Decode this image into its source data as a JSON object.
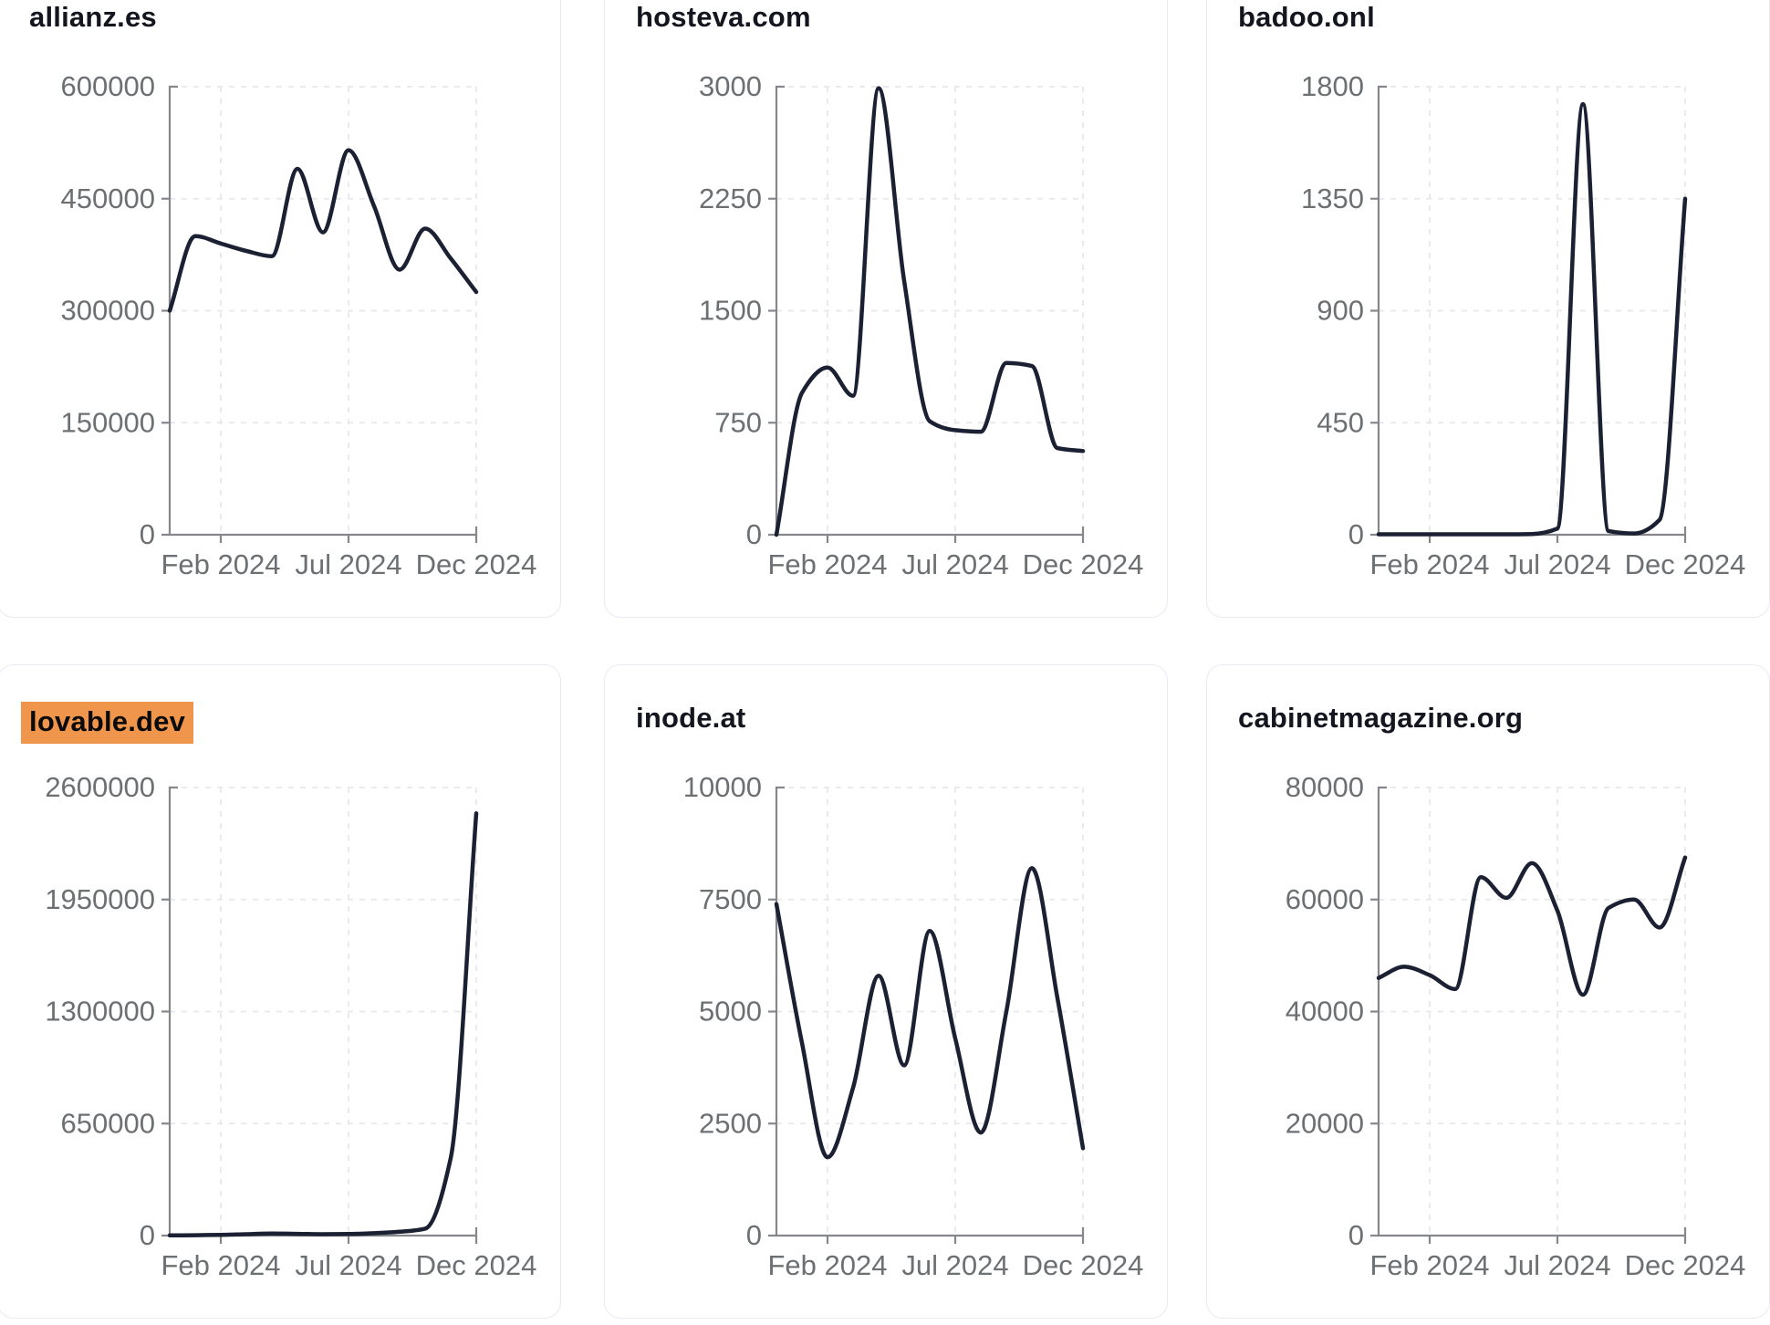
{
  "theme": {
    "page_bg": "#ffffff",
    "card_bg": "#ffffff",
    "card_border": "#e9ebf3",
    "title_color": "#14161f",
    "highlight_bg": "#f0964c",
    "highlight_text": "#0b0b0b",
    "line_color": "#1b2032",
    "axis_color": "#85878b",
    "tick_label_color": "#6d7073",
    "grid_color": "#e8e8ec"
  },
  "cards": [
    {
      "title": "allianz.es",
      "highlighted": false
    },
    {
      "title": "hosteva.com",
      "highlighted": false
    },
    {
      "title": "badoo.onl",
      "highlighted": false
    },
    {
      "title": "lovable.dev",
      "highlighted": true
    },
    {
      "title": "inode.at",
      "highlighted": false
    },
    {
      "title": "cabinetmagazine.org",
      "highlighted": false
    }
  ],
  "chart_data": [
    {
      "type": "line",
      "title": "allianz.es",
      "x": [
        "Dec 2023",
        "Jan 2024",
        "Feb 2024",
        "Mar 2024",
        "Apr 2024",
        "May 2024",
        "Jun 2024",
        "Jul 2024",
        "Aug 2024",
        "Sep 2024",
        "Oct 2024",
        "Nov 2024",
        "Dec 2024"
      ],
      "values": [
        300000,
        400000,
        390000,
        380000,
        373000,
        490000,
        405000,
        515000,
        440000,
        355000,
        410000,
        370000,
        325000
      ],
      "ylim": [
        0,
        600000
      ],
      "yticks": [
        0,
        150000,
        300000,
        450000,
        600000
      ],
      "x_tick_labels": [
        "Feb 2024",
        "Jul 2024",
        "Dec 2024"
      ],
      "x_tick_month_indices": [
        2,
        7,
        12
      ],
      "grid": true,
      "legend": "none"
    },
    {
      "type": "line",
      "title": "hosteva.com",
      "x": [
        "Dec 2023",
        "Jan 2024",
        "Feb 2024",
        "Mar 2024",
        "Apr 2024",
        "May 2024",
        "Jun 2024",
        "Jul 2024",
        "Aug 2024",
        "Sep 2024",
        "Oct 2024",
        "Nov 2024",
        "Dec 2024"
      ],
      "values": [
        0,
        950,
        1120,
        930,
        2990,
        1700,
        760,
        700,
        690,
        1150,
        1130,
        580,
        560
      ],
      "ylim": [
        0,
        3000
      ],
      "yticks": [
        0,
        750,
        1500,
        2250,
        3000
      ],
      "x_tick_labels": [
        "Feb 2024",
        "Jul 2024",
        "Dec 2024"
      ],
      "x_tick_month_indices": [
        2,
        7,
        12
      ],
      "grid": true,
      "legend": "none"
    },
    {
      "type": "line",
      "title": "badoo.onl",
      "x": [
        "Dec 2023",
        "Jan 2024",
        "Feb 2024",
        "Mar 2024",
        "Apr 2024",
        "May 2024",
        "Jun 2024",
        "Jul 2024",
        "Aug 2024",
        "Sep 2024",
        "Oct 2024",
        "Nov 2024",
        "Dec 2024"
      ],
      "values": [
        2,
        2,
        2,
        2,
        2,
        2,
        3,
        25,
        1730,
        15,
        5,
        60,
        1350
      ],
      "ylim": [
        0,
        1800
      ],
      "yticks": [
        0,
        450,
        900,
        1350,
        1800
      ],
      "x_tick_labels": [
        "Feb 2024",
        "Jul 2024",
        "Dec 2024"
      ],
      "x_tick_month_indices": [
        2,
        7,
        12
      ],
      "grid": true,
      "legend": "none"
    },
    {
      "type": "line",
      "title": "lovable.dev",
      "x": [
        "Dec 2023",
        "Jan 2024",
        "Feb 2024",
        "Mar 2024",
        "Apr 2024",
        "May 2024",
        "Jun 2024",
        "Jul 2024",
        "Aug 2024",
        "Sep 2024",
        "Oct 2024",
        "Nov 2024",
        "Dec 2024"
      ],
      "values": [
        1000,
        2000,
        4000,
        8000,
        12000,
        10000,
        8000,
        9000,
        14000,
        22000,
        40000,
        450000,
        2450000
      ],
      "ylim": [
        0,
        2600000
      ],
      "yticks": [
        0,
        650000,
        1300000,
        1950000,
        2600000
      ],
      "x_tick_labels": [
        "Feb 2024",
        "Jul 2024",
        "Dec 2024"
      ],
      "x_tick_month_indices": [
        2,
        7,
        12
      ],
      "grid": true,
      "legend": "none"
    },
    {
      "type": "line",
      "title": "inode.at",
      "x": [
        "Dec 2023",
        "Jan 2024",
        "Feb 2024",
        "Mar 2024",
        "Apr 2024",
        "May 2024",
        "Jun 2024",
        "Jul 2024",
        "Aug 2024",
        "Sep 2024",
        "Oct 2024",
        "Nov 2024",
        "Dec 2024"
      ],
      "values": [
        7400,
        4300,
        1750,
        3300,
        5800,
        3800,
        6800,
        4400,
        2300,
        5000,
        8200,
        5300,
        1950
      ],
      "ylim": [
        0,
        10000
      ],
      "yticks": [
        0,
        2500,
        5000,
        7500,
        10000
      ],
      "x_tick_labels": [
        "Feb 2024",
        "Jul 2024",
        "Dec 2024"
      ],
      "x_tick_month_indices": [
        2,
        7,
        12
      ],
      "grid": true,
      "legend": "none"
    },
    {
      "type": "line",
      "title": "cabinetmagazine.org",
      "x": [
        "Dec 2023",
        "Jan 2024",
        "Feb 2024",
        "Mar 2024",
        "Apr 2024",
        "May 2024",
        "Jun 2024",
        "Jul 2024",
        "Aug 2024",
        "Sep 2024",
        "Oct 2024",
        "Nov 2024",
        "Dec 2024"
      ],
      "values": [
        46000,
        48000,
        46500,
        44000,
        64000,
        60300,
        66500,
        58000,
        43000,
        58500,
        60000,
        55000,
        67500
      ],
      "ylim": [
        0,
        80000
      ],
      "yticks": [
        0,
        20000,
        40000,
        60000,
        80000
      ],
      "x_tick_labels": [
        "Feb 2024",
        "Jul 2024",
        "Dec 2024"
      ],
      "x_tick_month_indices": [
        2,
        7,
        12
      ],
      "grid": true,
      "legend": "none"
    }
  ]
}
